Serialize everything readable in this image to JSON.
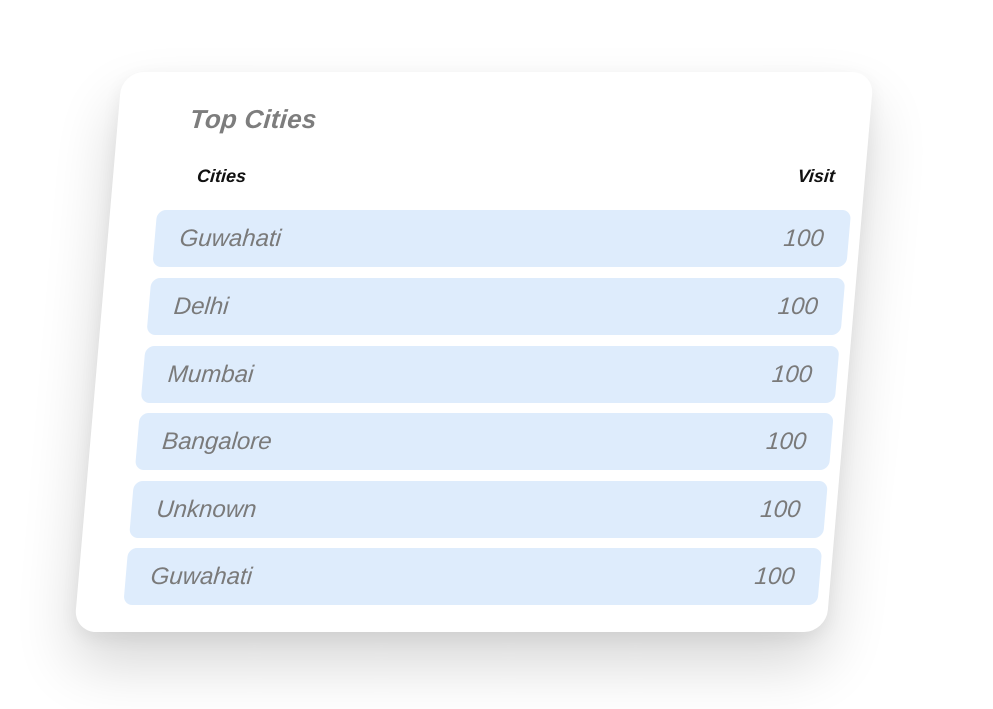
{
  "widget": {
    "title": "Top Cities",
    "columns": {
      "city": "Cities",
      "visit": "Visit"
    },
    "rows": [
      {
        "city": "Guwahati",
        "visit": "100"
      },
      {
        "city": "Delhi",
        "visit": "100"
      },
      {
        "city": "Mumbai",
        "visit": "100"
      },
      {
        "city": "Bangalore",
        "visit": "100"
      },
      {
        "city": "Unknown",
        "visit": "100"
      },
      {
        "city": "Guwahati",
        "visit": "100"
      }
    ]
  },
  "colors": {
    "row_background": "#deecfc",
    "title_text": "#7d7d7d",
    "row_text": "#7a7a7a",
    "header_text": "#111111"
  }
}
